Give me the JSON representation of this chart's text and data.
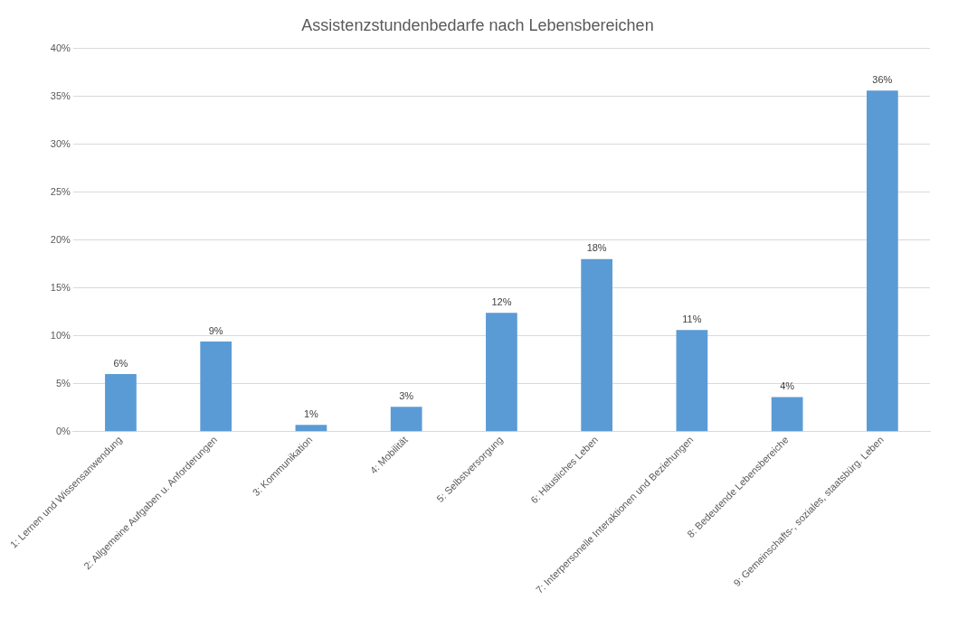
{
  "chart_data": {
    "type": "bar",
    "title": "Assistenzstundenbedarfe nach Lebensbereichen",
    "categories": [
      "1: Lernen und Wissensanwendung",
      "2: Allgemeine Aufgaben u. Anforderungen",
      "3: Kommunikation",
      "4: Mobilität",
      "5: Selbstversorgung",
      "6: Häusliches Leben",
      "7: Interpersonelle Interaktionen und Beziehungen",
      "8: Bedeutende Lebensbereiche",
      "9: Gemeinschafts-, soziales, staatsbürg. Leben"
    ],
    "values": [
      6,
      9.4,
      0.7,
      2.6,
      12.4,
      18,
      10.6,
      3.6,
      35.6
    ],
    "value_labels": [
      "6%",
      "9%",
      "1%",
      "3%",
      "12%",
      "18%",
      "11%",
      "4%",
      "36%"
    ],
    "color": "#5b9bd5",
    "ylim": [
      0,
      40
    ],
    "yticks": [
      {
        "value": 0,
        "label": "0%"
      },
      {
        "value": 5,
        "label": "5%"
      },
      {
        "value": 10,
        "label": "10%"
      },
      {
        "value": 15,
        "label": "15%"
      },
      {
        "value": 20,
        "label": "20%"
      },
      {
        "value": 25,
        "label": "25%"
      },
      {
        "value": 30,
        "label": "30%"
      },
      {
        "value": 35,
        "label": "35%"
      },
      {
        "value": 40,
        "label": "40%"
      }
    ],
    "grid": "y",
    "legend": false
  }
}
